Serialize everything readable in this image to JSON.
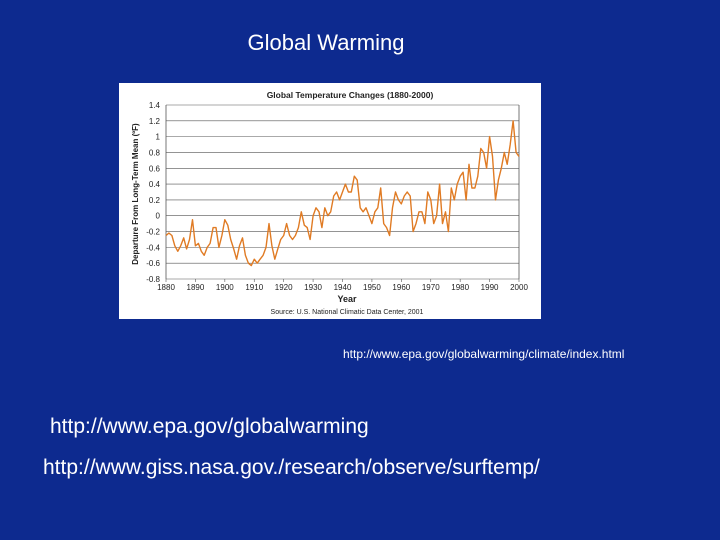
{
  "slide": {
    "title": "Global Warming",
    "source_url": "http://www.epa.gov/globalwarming/climate/index.html",
    "links": [
      "http://www.epa.gov/globalwarming",
      "http://www.giss.nasa.gov./research/observe/surftemp/"
    ]
  },
  "chart_data": {
    "type": "line",
    "title": "Global Temperature Changes (1880-2000)",
    "xlabel": "Year",
    "ylabel": "Departure From Long-Term Mean (ºF)",
    "source": "Source: U.S. National Climatic Data Center, 2001",
    "xlim": [
      1880,
      2000
    ],
    "ylim": [
      -0.8,
      1.4
    ],
    "xticks": [
      1880,
      1890,
      1900,
      1910,
      1920,
      1930,
      1940,
      1950,
      1960,
      1970,
      1980,
      1990,
      2000
    ],
    "yticks": [
      1.4,
      1.2,
      1,
      0.8,
      0.6,
      0.4,
      0.2,
      0,
      -0.2,
      -0.4,
      -0.6,
      -0.8
    ],
    "ytick_labels": [
      "1.4",
      "1.2",
      "1",
      "0.8",
      "0.6",
      "0.4",
      "0.2",
      "0",
      "-0.2",
      "-0.4",
      "-0.6",
      "-0.8"
    ],
    "grid": "horizontal",
    "line_color": "#e07b24",
    "series": [
      {
        "x": [
          1880,
          1881,
          1882,
          1883,
          1884,
          1885,
          1886,
          1887,
          1888,
          1889,
          1890,
          1891,
          1892,
          1893,
          1894,
          1895,
          1896,
          1897,
          1898,
          1899,
          1900,
          1901,
          1902,
          1903,
          1904,
          1905,
          1906,
          1907,
          1908,
          1909,
          1910,
          1911,
          1912,
          1913,
          1914,
          1915,
          1916,
          1917,
          1918,
          1919,
          1920,
          1921,
          1922,
          1923,
          1924,
          1925,
          1926,
          1927,
          1928,
          1929,
          1930,
          1931,
          1932,
          1933,
          1934,
          1935,
          1936,
          1937,
          1938,
          1939,
          1940,
          1941,
          1942,
          1943,
          1944,
          1945,
          1946,
          1947,
          1948,
          1949,
          1950,
          1951,
          1952,
          1953,
          1954,
          1955,
          1956,
          1957,
          1958,
          1959,
          1960,
          1961,
          1962,
          1963,
          1964,
          1965,
          1966,
          1967,
          1968,
          1969,
          1970,
          1971,
          1972,
          1973,
          1974,
          1975,
          1976,
          1977,
          1978,
          1979,
          1980,
          1981,
          1982,
          1983,
          1984,
          1985,
          1986,
          1987,
          1988,
          1989,
          1990,
          1991,
          1992,
          1993,
          1994,
          1995,
          1996,
          1997,
          1998,
          1999,
          2000
        ],
        "values": [
          -0.25,
          -0.22,
          -0.25,
          -0.38,
          -0.45,
          -0.38,
          -0.28,
          -0.42,
          -0.3,
          -0.05,
          -0.38,
          -0.35,
          -0.45,
          -0.5,
          -0.4,
          -0.35,
          -0.15,
          -0.15,
          -0.4,
          -0.25,
          -0.05,
          -0.12,
          -0.3,
          -0.42,
          -0.55,
          -0.38,
          -0.28,
          -0.5,
          -0.6,
          -0.63,
          -0.55,
          -0.6,
          -0.55,
          -0.5,
          -0.4,
          -0.1,
          -0.38,
          -0.55,
          -0.42,
          -0.3,
          -0.25,
          -0.1,
          -0.25,
          -0.3,
          -0.25,
          -0.15,
          0.05,
          -0.12,
          -0.15,
          -0.3,
          0.0,
          0.1,
          0.05,
          -0.15,
          0.1,
          0.0,
          0.05,
          0.25,
          0.3,
          0.2,
          0.3,
          0.4,
          0.3,
          0.3,
          0.5,
          0.45,
          0.1,
          0.05,
          0.1,
          0.0,
          -0.1,
          0.05,
          0.1,
          0.35,
          -0.1,
          -0.15,
          -0.25,
          0.1,
          0.3,
          0.2,
          0.15,
          0.25,
          0.3,
          0.25,
          -0.2,
          -0.1,
          0.05,
          0.05,
          -0.1,
          0.3,
          0.2,
          -0.1,
          0.0,
          0.4,
          -0.1,
          0.05,
          -0.2,
          0.35,
          0.2,
          0.4,
          0.5,
          0.55,
          0.2,
          0.65,
          0.35,
          0.35,
          0.5,
          0.85,
          0.8,
          0.6,
          1.0,
          0.75,
          0.2,
          0.45,
          0.6,
          0.8,
          0.65,
          0.9,
          1.2,
          0.8,
          0.75
        ]
      }
    ]
  }
}
